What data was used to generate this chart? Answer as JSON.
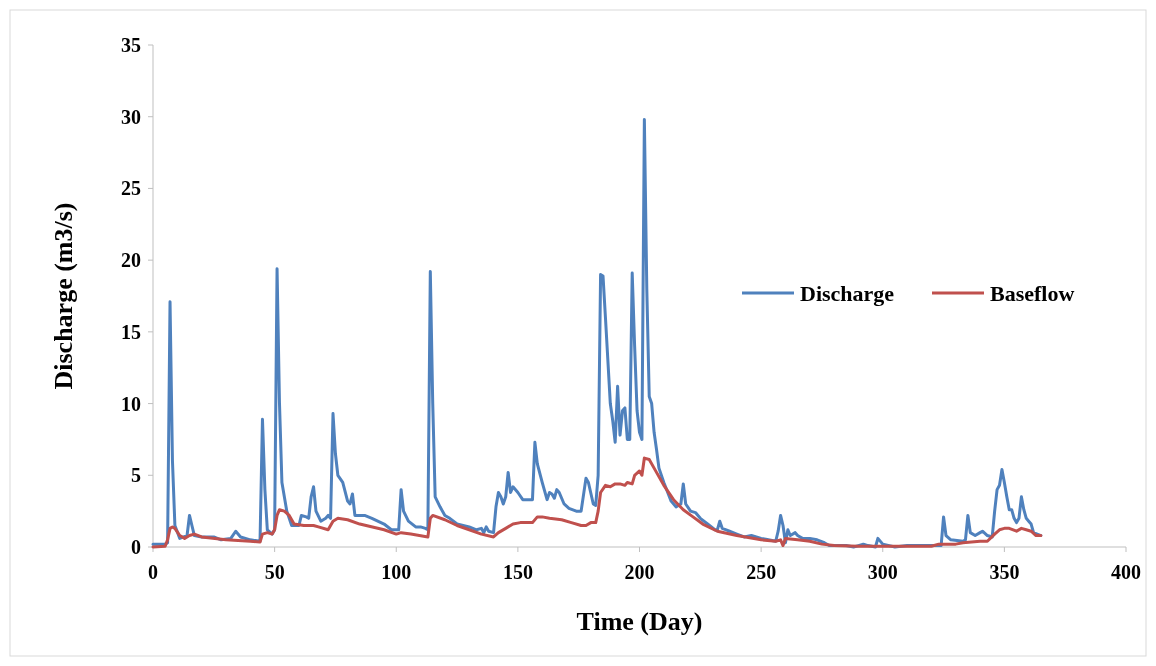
{
  "chart_data": {
    "type": "line",
    "xlabel": "Time (Day)",
    "ylabel": "Discharge (m3/s)",
    "xlim": [
      0,
      400
    ],
    "xticks": [
      0,
      50,
      100,
      150,
      200,
      250,
      300,
      350,
      400
    ],
    "ylim": [
      0,
      35
    ],
    "yticks": [
      0,
      5,
      10,
      15,
      20,
      25,
      30,
      35
    ],
    "grid": false,
    "legend": "right",
    "marker": "none",
    "line_style": "solid",
    "series": [
      {
        "name": "Discharge",
        "color": "#4f81bd",
        "x": [
          0,
          5,
          6,
          7,
          8,
          9,
          11,
          14,
          15,
          16,
          17,
          20,
          25,
          28,
          32,
          34,
          36,
          40,
          44,
          45,
          46,
          47,
          49,
          50,
          51,
          52,
          53,
          55,
          57,
          60,
          61,
          63,
          64,
          65,
          66,
          67,
          69,
          71,
          72,
          73,
          74,
          75,
          76,
          78,
          80,
          81,
          82,
          83,
          87,
          90,
          95,
          98,
          100,
          101,
          102,
          103,
          105,
          108,
          110,
          112,
          113,
          114,
          115,
          116,
          118,
          120,
          122,
          125,
          130,
          133,
          135,
          136,
          137,
          138,
          140,
          141,
          142,
          143,
          144,
          145,
          146,
          147,
          148,
          150,
          152,
          155,
          156,
          157,
          158,
          160,
          162,
          163,
          164,
          165,
          166,
          167,
          169,
          171,
          174,
          176,
          178,
          179,
          181,
          182,
          183,
          184,
          185,
          186,
          188,
          189,
          190,
          191,
          192,
          193,
          194,
          195,
          196,
          197,
          198,
          199,
          200,
          201,
          202,
          203,
          204,
          205,
          206,
          207,
          208,
          210,
          213,
          215,
          217,
          218,
          219,
          221,
          223,
          225,
          228,
          231,
          232,
          233,
          234,
          237,
          240,
          243,
          246,
          248,
          250,
          253,
          256,
          257,
          258,
          259,
          260,
          261,
          262,
          264,
          265,
          267,
          270,
          273,
          276,
          278,
          282,
          285,
          288,
          290,
          292,
          294,
          297,
          298,
          300,
          305,
          310,
          315,
          320,
          323,
          324,
          325,
          326,
          328,
          333,
          334,
          335,
          336,
          338,
          340,
          341,
          343,
          345,
          346,
          347,
          348,
          349,
          350,
          351,
          352,
          353,
          354,
          355,
          356,
          357,
          358,
          359,
          360,
          361,
          362,
          365
        ],
        "values": [
          0.2,
          0.2,
          0.3,
          17.1,
          6,
          1.5,
          0.6,
          0.8,
          2.2,
          1.5,
          0.8,
          0.7,
          0.7,
          0.5,
          0.6,
          1.1,
          0.7,
          0.5,
          0.4,
          8.9,
          4,
          1.2,
          0.9,
          1.2,
          19.4,
          10,
          4.5,
          2.5,
          1.5,
          1.5,
          2.2,
          2.1,
          2.0,
          3.5,
          4.2,
          2.5,
          1.8,
          2.0,
          2.2,
          2.0,
          9.3,
          6.5,
          5,
          4.5,
          3.2,
          3.0,
          3.7,
          2.2,
          2.2,
          2.0,
          1.6,
          1.2,
          1.2,
          1.2,
          4.0,
          2.5,
          1.8,
          1.4,
          1.4,
          1.3,
          1.2,
          19.2,
          10,
          3.5,
          2.8,
          2.2,
          2.0,
          1.6,
          1.4,
          1.2,
          1.3,
          1.0,
          1.4,
          1.1,
          1.0,
          2.8,
          3.8,
          3.5,
          3.0,
          3.5,
          5.2,
          3.8,
          4.2,
          3.8,
          3.3,
          3.3,
          3.3,
          7.3,
          5.8,
          4.5,
          3.3,
          3.8,
          3.7,
          3.4,
          4.0,
          3.8,
          3.0,
          2.7,
          2.5,
          2.5,
          4.8,
          4.5,
          3.0,
          2.9,
          5,
          19.0,
          18.9,
          16,
          10,
          8.8,
          7.3,
          11.2,
          7.8,
          9.5,
          9.7,
          7.5,
          7.5,
          19.1,
          14,
          9.5,
          8,
          7.5,
          29.8,
          18,
          10.5,
          10.0,
          8.0,
          6.8,
          5.5,
          4.5,
          3.2,
          2.8,
          3.0,
          4.4,
          3.0,
          2.5,
          2.4,
          2.0,
          1.6,
          1.2,
          1.2,
          1.8,
          1.3,
          1.1,
          0.9,
          0.7,
          0.8,
          0.7,
          0.6,
          0.5,
          0.4,
          1.1,
          2.2,
          1.5,
          0.3,
          1.2,
          0.8,
          1.0,
          0.8,
          0.6,
          0.6,
          0.5,
          0.3,
          0.1,
          0.1,
          0.1,
          0.0,
          0.1,
          0.2,
          0.1,
          0.0,
          0.6,
          0.2,
          0.0,
          0.1,
          0.1,
          0.1,
          0.1,
          0.1,
          2.1,
          0.8,
          0.5,
          0.4,
          0.5,
          2.2,
          1.0,
          0.8,
          1.0,
          1.1,
          0.8,
          0.7,
          2.5,
          4.0,
          4.3,
          5.4,
          4.5,
          3.5,
          2.6,
          2.6,
          2.0,
          1.7,
          2.0,
          3.5,
          2.6,
          2.0,
          1.8,
          1.6,
          1.0,
          0.8
        ]
      },
      {
        "name": "Baseflow",
        "color": "#c0504d",
        "x": [
          0,
          5,
          6,
          7,
          8,
          9,
          11,
          13,
          15,
          17,
          20,
          30,
          40,
          44,
          45,
          47,
          49,
          50,
          51,
          52,
          54,
          56,
          58,
          62,
          66,
          68,
          72,
          74,
          76,
          80,
          85,
          95,
          100,
          102,
          106,
          113,
          114,
          115,
          120,
          125,
          130,
          135,
          140,
          142,
          145,
          148,
          151,
          156,
          158,
          160,
          163,
          168,
          172,
          176,
          178,
          180,
          182,
          183,
          184,
          186,
          188,
          190,
          192,
          194,
          195,
          197,
          198,
          200,
          201,
          202,
          204,
          206,
          210,
          214,
          218,
          222,
          226,
          232,
          240,
          250,
          256,
          258,
          259,
          260,
          265,
          270,
          275,
          280,
          290,
          300,
          320,
          323,
          325,
          330,
          333,
          340,
          343,
          346,
          348,
          350,
          352,
          355,
          357,
          359,
          361,
          363,
          365
        ],
        "values": [
          0,
          0.05,
          0.5,
          1.3,
          1.4,
          1.3,
          0.8,
          0.6,
          0.8,
          0.9,
          0.7,
          0.5,
          0.4,
          0.35,
          0.9,
          1.0,
          0.9,
          1.2,
          2.2,
          2.6,
          2.5,
          2.2,
          1.6,
          1.5,
          1.5,
          1.4,
          1.2,
          1.8,
          2.0,
          1.9,
          1.6,
          1.2,
          0.9,
          1.0,
          0.9,
          0.7,
          2.0,
          2.2,
          1.9,
          1.5,
          1.2,
          0.9,
          0.7,
          1.0,
          1.3,
          1.6,
          1.7,
          1.7,
          2.1,
          2.1,
          2.0,
          1.9,
          1.7,
          1.5,
          1.5,
          1.7,
          1.7,
          2.5,
          3.8,
          4.3,
          4.2,
          4.4,
          4.4,
          4.3,
          4.5,
          4.4,
          5.0,
          5.3,
          5.0,
          6.2,
          6.1,
          5.5,
          4.3,
          3.3,
          2.6,
          2.1,
          1.6,
          1.1,
          0.8,
          0.5,
          0.4,
          0.5,
          0.1,
          0.6,
          0.5,
          0.4,
          0.2,
          0.1,
          0.05,
          0.05,
          0.05,
          0.2,
          0.2,
          0.2,
          0.3,
          0.4,
          0.4,
          0.9,
          1.2,
          1.3,
          1.3,
          1.1,
          1.3,
          1.2,
          1.1,
          0.8,
          0.8
        ]
      }
    ]
  }
}
